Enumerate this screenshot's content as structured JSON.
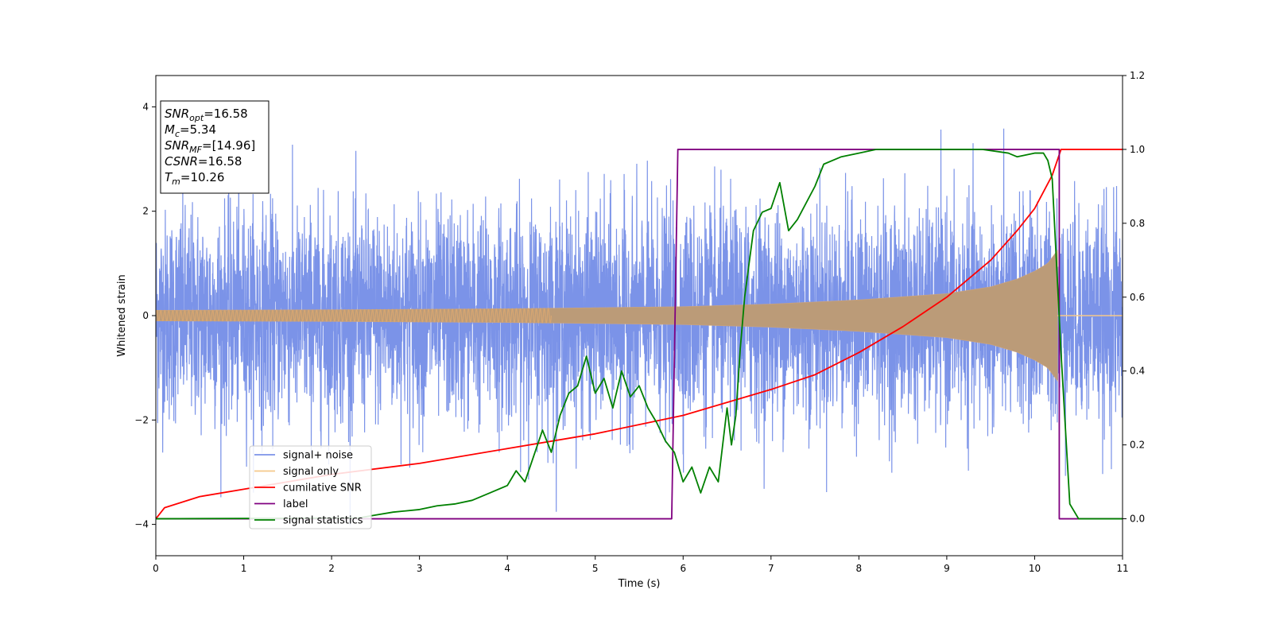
{
  "chart_data": {
    "type": "line",
    "xlabel": "Time (s)",
    "ylabel": "Whitened strain",
    "xlim": [
      0,
      11
    ],
    "ylim": [
      -4.6,
      4.6
    ],
    "y2lim": [
      -0.1,
      1.2
    ],
    "x_ticks": [
      "0",
      "1",
      "2",
      "3",
      "4",
      "5",
      "6",
      "7",
      "8",
      "9",
      "10",
      "11"
    ],
    "y_ticks": [
      "−4",
      "−2",
      "0",
      "2",
      "4"
    ],
    "y2_ticks": [
      "0.0",
      "0.2",
      "0.4",
      "0.6",
      "0.8",
      "1.0",
      "1.2"
    ],
    "grid": false,
    "legend_position": "lower-left",
    "annotation": {
      "lines": [
        {
          "main": "SNR",
          "sub": "opt",
          "value": "=16.58"
        },
        {
          "main": "M",
          "sub": "c",
          "value": "=5.34"
        },
        {
          "main": "SNR",
          "sub": "MF",
          "value": "=[14.96]"
        },
        {
          "main": "CSNR",
          "sub": "",
          "value": "=16.58"
        },
        {
          "main": "T",
          "sub": "m",
          "value": "=10.26"
        }
      ]
    },
    "series": [
      {
        "name": "signal+ noise",
        "color": "#7b93e8",
        "axis": "left",
        "noise_sigma": 1.0,
        "noise_range": [
          -4.1,
          4.1
        ]
      },
      {
        "name": "signal only",
        "color": "#f5c88a",
        "axis": "left",
        "chirp_end": 10.26,
        "envelope": [
          [
            0,
            0.1
          ],
          [
            2,
            0.11
          ],
          [
            4,
            0.13
          ],
          [
            6,
            0.17
          ],
          [
            7,
            0.22
          ],
          [
            8,
            0.3
          ],
          [
            9,
            0.42
          ],
          [
            9.5,
            0.55
          ],
          [
            9.8,
            0.7
          ],
          [
            10,
            0.85
          ],
          [
            10.15,
            1.0
          ],
          [
            10.26,
            1.25
          ]
        ]
      },
      {
        "name": "cumilative SNR",
        "color": "#ff0000",
        "axis": "right",
        "points": [
          [
            0,
            0.0
          ],
          [
            0.1,
            0.03
          ],
          [
            0.5,
            0.06
          ],
          [
            1,
            0.08
          ],
          [
            2,
            0.12
          ],
          [
            3,
            0.15
          ],
          [
            4,
            0.19
          ],
          [
            5,
            0.23
          ],
          [
            6,
            0.28
          ],
          [
            7,
            0.35
          ],
          [
            7.5,
            0.39
          ],
          [
            8,
            0.45
          ],
          [
            8.5,
            0.52
          ],
          [
            9,
            0.6
          ],
          [
            9.5,
            0.7
          ],
          [
            9.8,
            0.78
          ],
          [
            10,
            0.84
          ],
          [
            10.2,
            0.93
          ],
          [
            10.3,
            1.0
          ],
          [
            11,
            1.0
          ]
        ]
      },
      {
        "name": "label",
        "color": "#800080",
        "axis": "right",
        "points": [
          [
            0,
            0
          ],
          [
            5.87,
            0
          ],
          [
            5.94,
            1
          ],
          [
            10.28,
            1
          ],
          [
            10.28,
            0
          ],
          [
            11,
            0
          ]
        ]
      },
      {
        "name": "signal statistics",
        "color": "#008000",
        "axis": "right",
        "points": [
          [
            0,
            0
          ],
          [
            2.3,
            0.002
          ],
          [
            2.5,
            0.01
          ],
          [
            2.7,
            0.018
          ],
          [
            3,
            0.025
          ],
          [
            3.2,
            0.035
          ],
          [
            3.4,
            0.04
          ],
          [
            3.6,
            0.05
          ],
          [
            3.8,
            0.07
          ],
          [
            4,
            0.09
          ],
          [
            4.1,
            0.13
          ],
          [
            4.2,
            0.1
          ],
          [
            4.3,
            0.17
          ],
          [
            4.4,
            0.24
          ],
          [
            4.5,
            0.18
          ],
          [
            4.6,
            0.28
          ],
          [
            4.7,
            0.34
          ],
          [
            4.8,
            0.36
          ],
          [
            4.9,
            0.44
          ],
          [
            5,
            0.34
          ],
          [
            5.1,
            0.38
          ],
          [
            5.2,
            0.3
          ],
          [
            5.3,
            0.4
          ],
          [
            5.4,
            0.33
          ],
          [
            5.5,
            0.36
          ],
          [
            5.6,
            0.3
          ],
          [
            5.7,
            0.26
          ],
          [
            5.8,
            0.21
          ],
          [
            5.9,
            0.18
          ],
          [
            6,
            0.1
          ],
          [
            6.1,
            0.14
          ],
          [
            6.2,
            0.07
          ],
          [
            6.3,
            0.14
          ],
          [
            6.4,
            0.1
          ],
          [
            6.5,
            0.3
          ],
          [
            6.55,
            0.2
          ],
          [
            6.6,
            0.28
          ],
          [
            6.65,
            0.46
          ],
          [
            6.7,
            0.6
          ],
          [
            6.8,
            0.78
          ],
          [
            6.9,
            0.83
          ],
          [
            7,
            0.84
          ],
          [
            7.1,
            0.91
          ],
          [
            7.2,
            0.78
          ],
          [
            7.3,
            0.81
          ],
          [
            7.5,
            0.9
          ],
          [
            7.6,
            0.96
          ],
          [
            7.8,
            0.98
          ],
          [
            8,
            0.99
          ],
          [
            8.2,
            1.0
          ],
          [
            8.6,
            1.0
          ],
          [
            9,
            1.0
          ],
          [
            9.4,
            1.0
          ],
          [
            9.7,
            0.99
          ],
          [
            9.8,
            0.98
          ],
          [
            10,
            0.99
          ],
          [
            10.1,
            0.99
          ],
          [
            10.15,
            0.97
          ],
          [
            10.2,
            0.92
          ],
          [
            10.3,
            0.45
          ],
          [
            10.4,
            0.04
          ],
          [
            10.5,
            0.0
          ],
          [
            11,
            0.0
          ]
        ]
      }
    ]
  }
}
